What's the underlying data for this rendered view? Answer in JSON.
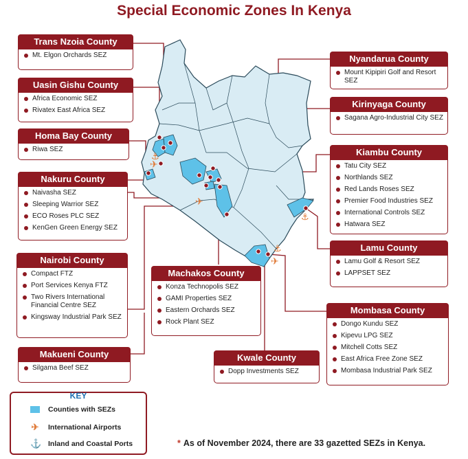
{
  "title": "Special Economic Zones In Kenya",
  "colors": {
    "accent": "#8f1a22",
    "sez_county": "#5ec1e8",
    "map_fill": "#d9ecf4",
    "marker": "#e07b39"
  },
  "counties": [
    {
      "name": "Trans Nzoia County",
      "sezs": [
        "Mt. Elgon Orchards SEZ"
      ]
    },
    {
      "name": "Uasin Gishu County",
      "sezs": [
        "Africa Economic SEZ",
        "Rivatex East Africa SEZ"
      ]
    },
    {
      "name": "Homa Bay County",
      "sezs": [
        "Riwa SEZ"
      ]
    },
    {
      "name": "Nakuru County",
      "sezs": [
        "Naivasha SEZ",
        "Sleeping Warrior SEZ",
        "ECO Roses PLC  SEZ",
        "KenGen Green Energy SEZ"
      ]
    },
    {
      "name": "Nairobi County",
      "sezs": [
        "Compact FTZ",
        "Port Services Kenya FTZ",
        "Two Rivers International Financial Centre SEZ",
        "Kingsway Industrial Park SEZ"
      ]
    },
    {
      "name": "Makueni  County",
      "sezs": [
        "Silgama Beef SEZ"
      ]
    },
    {
      "name": "Machakos County",
      "sezs": [
        "Konza Technopolis  SEZ",
        "GAMI Properties SEZ",
        "Eastern Orchards SEZ",
        "Rock Plant SEZ"
      ]
    },
    {
      "name": "Kwale  County",
      "sezs": [
        "Dopp Investments SEZ"
      ]
    },
    {
      "name": "Nyandarua County",
      "sezs": [
        "Mount Kipipiri Golf and Resort SEZ"
      ]
    },
    {
      "name": "Kirinyaga  County",
      "sezs": [
        "Sagana Agro-Industrial City SEZ"
      ]
    },
    {
      "name": "Kiambu County",
      "sezs": [
        "Tatu City SEZ",
        "Northlands SEZ",
        "Red Lands  Roses SEZ",
        "Premier Food Industries SEZ",
        "International Controls SEZ",
        "Hatwara SEZ"
      ]
    },
    {
      "name": "Lamu County",
      "sezs": [
        "Lamu Golf & Resort SEZ",
        "LAPPSET SEZ"
      ]
    },
    {
      "name": "Mombasa County",
      "sezs": [
        "Dongo Kundu SEZ",
        "Kipevu LPG SEZ",
        "Mitchell Cotts SEZ",
        "East Africa Free Zone SEZ",
        "Mombasa Industrial Park SEZ"
      ]
    }
  ],
  "legend": {
    "title": "KEY",
    "items": [
      {
        "label": "Counties with SEZs",
        "icon": "blue-swatch"
      },
      {
        "label": "International Airports",
        "icon": "airplane-icon"
      },
      {
        "label": "Inland and Coastal Ports",
        "icon": "anchor-icon"
      }
    ]
  },
  "footnote": "As of November 2024, there are 33 gazetted SEZs in Kenya."
}
